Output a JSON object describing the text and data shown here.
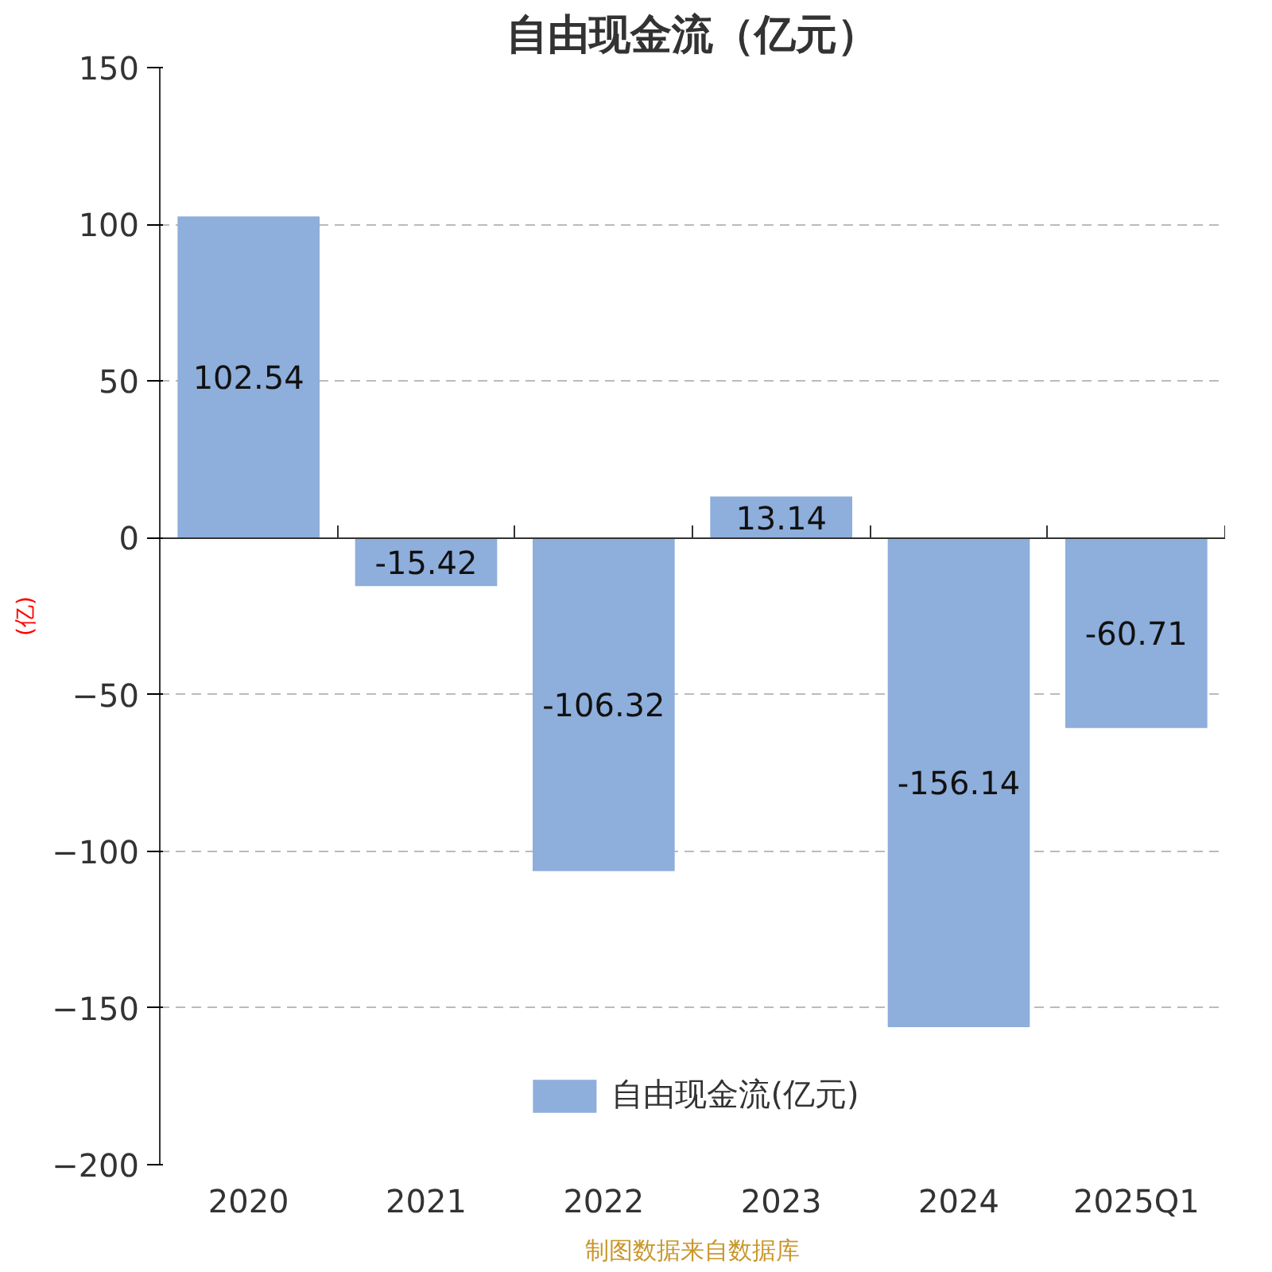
{
  "chart_data": {
    "type": "bar",
    "title": "自由现金流（亿元）",
    "ylabel": "(亿)",
    "categories": [
      "2020",
      "2021",
      "2022",
      "2023",
      "2024",
      "2025Q1"
    ],
    "series": [
      {
        "name": "自由现金流(亿元)",
        "color": "#8eaedb",
        "values": [
          102.54,
          -15.42,
          -106.32,
          13.14,
          -156.14,
          -60.71
        ]
      }
    ],
    "ylim": [
      -200,
      150
    ],
    "yticks": [
      -200,
      -150,
      -100,
      -50,
      0,
      50,
      100,
      150
    ],
    "grid": "y",
    "legend": "bottom",
    "data_labels": true,
    "annotations": [
      "制图数据来自数据库"
    ]
  }
}
